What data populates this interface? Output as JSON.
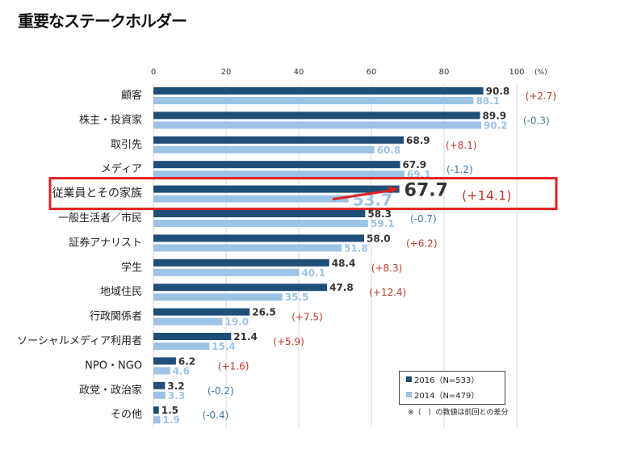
{
  "title": "重要なステークホルダー",
  "chart_data": {
    "type": "bar",
    "orientation": "horizontal",
    "unit_label": "(%)",
    "xlim": [
      0,
      100
    ],
    "xticks": [
      0,
      20,
      40,
      60,
      80,
      100
    ],
    "grid": true,
    "categories": [
      "顧客",
      "株主・投資家",
      "取引先",
      "メディア",
      "従業員とその家族",
      "一般生活者／市民",
      "証券アナリスト",
      "学生",
      "地域住民",
      "行政関係者",
      "ソーシャルメディア利用者",
      "NPO・NGO",
      "政党・政治家",
      "その他"
    ],
    "series": [
      {
        "name": "2016（N=533）",
        "color": "#1f4e79",
        "values": [
          90.8,
          89.9,
          68.9,
          67.9,
          67.7,
          58.3,
          58.0,
          48.4,
          47.8,
          26.5,
          21.4,
          6.2,
          3.2,
          1.5
        ]
      },
      {
        "name": "2014（N=479）",
        "color": "#9dc3e6",
        "values": [
          88.1,
          90.2,
          60.8,
          69.1,
          53.7,
          59.1,
          51.8,
          40.1,
          35.5,
          19.0,
          15.4,
          4.6,
          3.3,
          1.9
        ]
      }
    ],
    "differences": [
      "(+2.7)",
      "(-0.3)",
      "(+8.1)",
      "(-1.2)",
      "(+14.1)",
      "(-0.7)",
      "(+6.2)",
      "(+8.3)",
      "(+12.4)",
      "(+7.5)",
      "(+5.9)",
      "(+1.6)",
      "(-0.2)",
      "(-0.4)"
    ],
    "highlighted_category": "従業員とその家族",
    "positive_diff_color": "#c0392b",
    "negative_diff_color": "#3b7aa8",
    "highlight_color": "#e02020",
    "legend_position": "bottom-right",
    "note": "※（　）の数値は前回との差分"
  }
}
